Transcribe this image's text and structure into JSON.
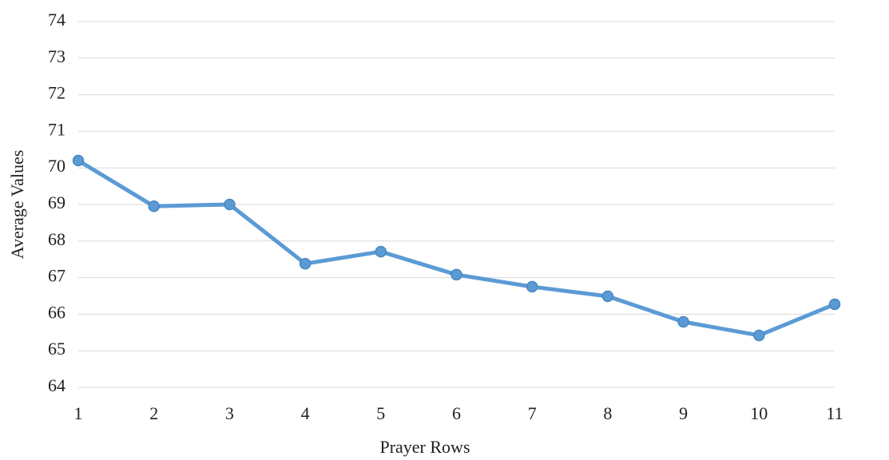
{
  "chart_data": {
    "type": "line",
    "x_label": "Prayer Rows",
    "y_label": "Average Values",
    "x": [
      1,
      2,
      3,
      4,
      5,
      6,
      7,
      8,
      9,
      10,
      11
    ],
    "series": [
      {
        "name": "Average Values",
        "color": "#5b9bd5",
        "values": [
          70.2,
          68.95,
          69.0,
          67.38,
          67.71,
          67.08,
          66.75,
          66.49,
          65.79,
          65.42,
          66.27
        ]
      }
    ],
    "xlim": [
      1,
      11
    ],
    "xticks": [
      1,
      2,
      3,
      4,
      5,
      6,
      7,
      8,
      9,
      10,
      11
    ],
    "ylim": [
      64,
      74
    ],
    "yticks": [
      64,
      65,
      66,
      67,
      68,
      69,
      70,
      71,
      72,
      73,
      74
    ],
    "grid": true
  }
}
